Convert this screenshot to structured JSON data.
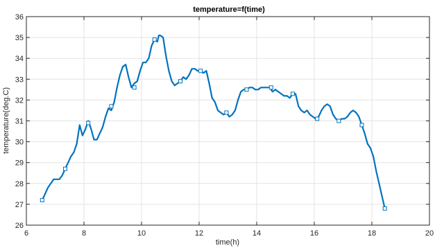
{
  "chart_data": {
    "type": "line",
    "title": "temperature=f(time)",
    "xlabel": "time(h)",
    "ylabel": "temperature(deg.C)",
    "xlim": [
      6,
      20
    ],
    "ylim": [
      26,
      36
    ],
    "xticks": [
      6,
      8,
      10,
      12,
      14,
      16,
      18,
      20
    ],
    "yticks": [
      26,
      27,
      28,
      29,
      30,
      31,
      32,
      33,
      34,
      35,
      36
    ],
    "grid": true,
    "line_color": "#0072BD",
    "series": [
      {
        "x": [
          6.55,
          6.65,
          6.75,
          6.85,
          6.95,
          7.05,
          7.15,
          7.25,
          7.35,
          7.45,
          7.55,
          7.65,
          7.75,
          7.85,
          7.95,
          8.05,
          8.15,
          8.25,
          8.35,
          8.45,
          8.55,
          8.65,
          8.75,
          8.85,
          8.95,
          9.05,
          9.15,
          9.25,
          9.35,
          9.45,
          9.55,
          9.65,
          9.75,
          9.85,
          9.95,
          10.05,
          10.15,
          10.25,
          10.35,
          10.45,
          10.55,
          10.6,
          10.65,
          10.75,
          10.85,
          10.95,
          11.05,
          11.15,
          11.25,
          11.35,
          11.45,
          11.55,
          11.65,
          11.75,
          11.85,
          11.95,
          12.05,
          12.15,
          12.25,
          12.35,
          12.45,
          12.55,
          12.65,
          12.75,
          12.85,
          12.95,
          13.05,
          13.15,
          13.25,
          13.35,
          13.45,
          13.55,
          13.65,
          13.75,
          13.85,
          13.95,
          14.05,
          14.15,
          14.25,
          14.35,
          14.45,
          14.55,
          14.65,
          14.75,
          14.85,
          14.95,
          15.05,
          15.15,
          15.25,
          15.35,
          15.45,
          15.55,
          15.65,
          15.75,
          15.85,
          15.95,
          16.05,
          16.15,
          16.25,
          16.35,
          16.45,
          16.55,
          16.65,
          16.75,
          16.85,
          16.95,
          17.05,
          17.15,
          17.25,
          17.35,
          17.45,
          17.55,
          17.65,
          17.75,
          17.85,
          17.95,
          18.05,
          18.15,
          18.25,
          18.35,
          18.45
        ],
        "y": [
          27.2,
          27.5,
          27.8,
          28.0,
          28.2,
          28.2,
          28.2,
          28.4,
          28.7,
          29.0,
          29.3,
          29.5,
          29.9,
          30.8,
          30.3,
          30.6,
          31.0,
          30.6,
          30.1,
          30.1,
          30.4,
          30.7,
          31.2,
          31.6,
          31.5,
          31.9,
          32.6,
          33.2,
          33.6,
          33.7,
          33.1,
          32.6,
          32.8,
          32.9,
          33.4,
          33.8,
          33.8,
          34.0,
          34.6,
          34.9,
          34.8,
          35.1,
          35.1,
          35.0,
          34.1,
          33.4,
          32.9,
          32.7,
          32.8,
          32.9,
          33.1,
          33.0,
          33.2,
          33.5,
          33.5,
          33.4,
          33.4,
          33.3,
          33.4,
          32.8,
          32.1,
          31.9,
          31.5,
          31.4,
          31.3,
          31.4,
          31.2,
          31.3,
          31.5,
          32.0,
          32.4,
          32.5,
          32.5,
          32.6,
          32.6,
          32.5,
          32.5,
          32.6,
          32.6,
          32.6,
          32.6,
          32.4,
          32.5,
          32.4,
          32.3,
          32.2,
          32.2,
          32.1,
          32.3,
          32.3,
          31.7,
          31.5,
          31.4,
          31.5,
          31.3,
          31.2,
          31.1,
          31.2,
          31.5,
          31.7,
          31.8,
          31.7,
          31.3,
          31.1,
          31.0,
          31.1,
          31.1,
          31.2,
          31.4,
          31.5,
          31.4,
          31.2,
          30.8,
          30.4,
          29.9,
          29.7,
          29.3,
          28.6,
          28.0,
          27.4,
          26.8
        ]
      }
    ],
    "markers": {
      "x": [
        6.55,
        7.35,
        8.15,
        8.95,
        9.75,
        10.45,
        11.35,
        12.05,
        12.95,
        13.65,
        14.5,
        15.25,
        16.1,
        16.85,
        17.65,
        18.45
      ],
      "y": [
        27.2,
        28.7,
        30.9,
        31.7,
        32.6,
        34.9,
        32.9,
        33.4,
        31.4,
        32.5,
        32.6,
        32.3,
        31.1,
        31.0,
        30.8,
        26.8
      ]
    }
  }
}
